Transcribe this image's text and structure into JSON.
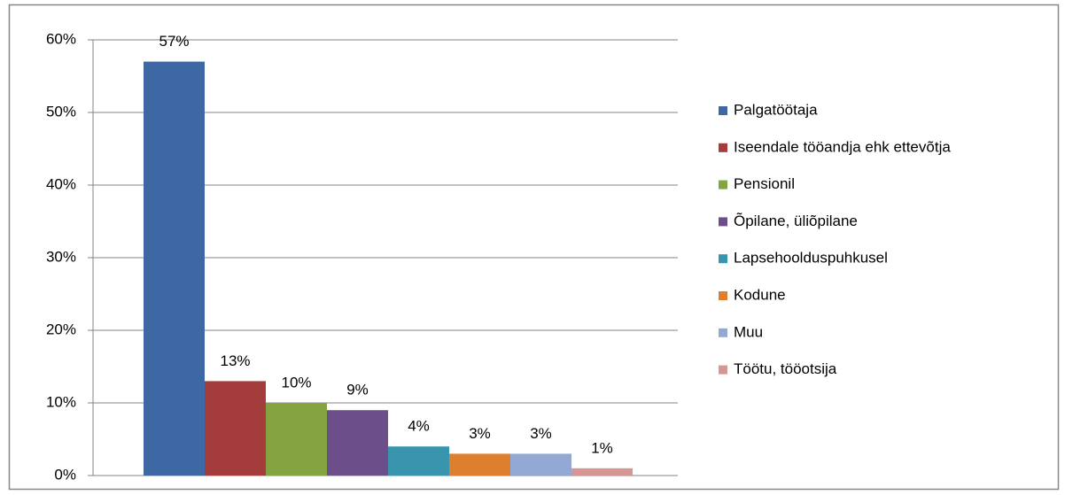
{
  "chart_data": {
    "type": "bar",
    "series": [
      {
        "name": "Palgatöötaja",
        "color": "#3d68a3",
        "values": [
          57
        ],
        "value_labels": [
          "57%"
        ]
      },
      {
        "name": "Iseendale tööandja ehk ettevõtja",
        "color": "#a33c3a",
        "values": [
          13
        ],
        "value_labels": [
          "13%"
        ]
      },
      {
        "name": "Pensionil",
        "color": "#84a341",
        "values": [
          10
        ],
        "value_labels": [
          "10%"
        ]
      },
      {
        "name": "Õpilane, üliõpilane",
        "color": "#6b4e8a",
        "values": [
          9
        ],
        "value_labels": [
          "9%"
        ]
      },
      {
        "name": "Lapsehoolduspuhkusel",
        "color": "#3995ad",
        "values": [
          4
        ],
        "value_labels": [
          "4%"
        ]
      },
      {
        "name": "Kodune",
        "color": "#dd7f2f",
        "values": [
          3
        ],
        "value_labels": [
          "3%"
        ]
      },
      {
        "name": "Muu",
        "color": "#93a9d3",
        "values": [
          3
        ],
        "value_labels": [
          "3%"
        ]
      },
      {
        "name": "Töötu, tööotsija",
        "color": "#d69794",
        "values": [
          1
        ],
        "value_labels": [
          "1%"
        ]
      }
    ],
    "ylim": [
      0,
      60
    ],
    "yticks": [
      {
        "value": 0,
        "label": "0%"
      },
      {
        "value": 10,
        "label": "10%"
      },
      {
        "value": 20,
        "label": "20%"
      },
      {
        "value": 30,
        "label": "30%"
      },
      {
        "value": 40,
        "label": "40%"
      },
      {
        "value": 50,
        "label": "50%"
      },
      {
        "value": 60,
        "label": "60%"
      }
    ],
    "grid": true,
    "legend": "right"
  }
}
